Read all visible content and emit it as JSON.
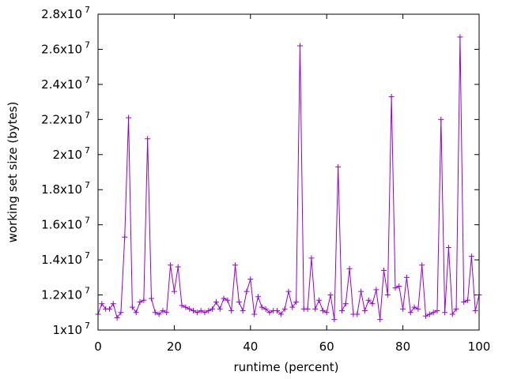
{
  "chart_data": {
    "type": "line",
    "title": "",
    "xlabel": "runtime (percent)",
    "ylabel": "working set size (bytes)",
    "xlim": [
      0,
      100
    ],
    "ylim": [
      10000000,
      28000000
    ],
    "grid": false,
    "legend": "none",
    "markers": "plus",
    "x_ticks": [
      {
        "value": 0,
        "label": "0"
      },
      {
        "value": 20,
        "label": "20"
      },
      {
        "value": 40,
        "label": "40"
      },
      {
        "value": 60,
        "label": "60"
      },
      {
        "value": 80,
        "label": "80"
      },
      {
        "value": 100,
        "label": "100"
      }
    ],
    "y_ticks": [
      {
        "value": 10000000,
        "mantissa": "1x10",
        "exp": "7"
      },
      {
        "value": 12000000,
        "mantissa": "1.2x10",
        "exp": "7"
      },
      {
        "value": 14000000,
        "mantissa": "1.4x10",
        "exp": "7"
      },
      {
        "value": 16000000,
        "mantissa": "1.6x10",
        "exp": "7"
      },
      {
        "value": 18000000,
        "mantissa": "1.8x10",
        "exp": "7"
      },
      {
        "value": 20000000,
        "mantissa": "2x10",
        "exp": "7"
      },
      {
        "value": 22000000,
        "mantissa": "2.2x10",
        "exp": "7"
      },
      {
        "value": 24000000,
        "mantissa": "2.4x10",
        "exp": "7"
      },
      {
        "value": 26000000,
        "mantissa": "2.6x10",
        "exp": "7"
      },
      {
        "value": 28000000,
        "mantissa": "2.8x10",
        "exp": "7"
      }
    ],
    "series": [
      {
        "color": "#9400d3",
        "x": [
          0,
          1,
          2,
          3,
          4,
          5,
          6,
          7,
          8,
          9,
          10,
          11,
          12,
          13,
          14,
          15,
          16,
          17,
          18,
          19,
          20,
          21,
          22,
          23,
          24,
          25,
          26,
          27,
          28,
          29,
          30,
          31,
          32,
          33,
          34,
          35,
          36,
          37,
          38,
          39,
          40,
          41,
          42,
          43,
          44,
          45,
          46,
          47,
          48,
          49,
          50,
          51,
          52,
          53,
          54,
          55,
          56,
          57,
          58,
          59,
          60,
          61,
          62,
          63,
          64,
          65,
          66,
          67,
          68,
          69,
          70,
          71,
          72,
          73,
          74,
          75,
          76,
          77,
          78,
          79,
          80,
          81,
          82,
          83,
          84,
          85,
          86,
          87,
          88,
          89,
          90,
          91,
          92,
          93,
          94,
          95,
          96,
          97,
          98,
          99,
          100
        ],
        "y": [
          10900000,
          11500000,
          11200000,
          11200000,
          11500000,
          10700000,
          11000000,
          15300000,
          22100000,
          11300000,
          11000000,
          11600000,
          11700000,
          20900000,
          11800000,
          11000000,
          10900000,
          11100000,
          11000000,
          13700000,
          12200000,
          13600000,
          11400000,
          11300000,
          11200000,
          11100000,
          11000000,
          11100000,
          11000000,
          11100000,
          11200000,
          11600000,
          11200000,
          11800000,
          11700000,
          11100000,
          13700000,
          11600000,
          11100000,
          12200000,
          12900000,
          10900000,
          11900000,
          11300000,
          11200000,
          11000000,
          11100000,
          11100000,
          10900000,
          11200000,
          12200000,
          11300000,
          11600000,
          26200000,
          11200000,
          11200000,
          14100000,
          11200000,
          11700000,
          11100000,
          11000000,
          12000000,
          10600000,
          19300000,
          11100000,
          11500000,
          13500000,
          10900000,
          10900000,
          12200000,
          11100000,
          11700000,
          11500000,
          12300000,
          10600000,
          13400000,
          12000000,
          23300000,
          12400000,
          12500000,
          11200000,
          13000000,
          11000000,
          11300000,
          11200000,
          13700000,
          10800000,
          10900000,
          11000000,
          11100000,
          22000000,
          11000000,
          14700000,
          10900000,
          11200000,
          26700000,
          11600000,
          11700000,
          14200000,
          11100000,
          12000000
        ]
      }
    ]
  }
}
